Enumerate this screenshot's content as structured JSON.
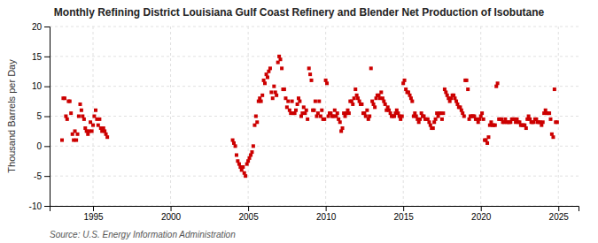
{
  "chart_data": {
    "type": "scatter",
    "title": "Monthly Refining District Louisiana Gulf Coast Refinery and Blender Net Production of Isobutane",
    "ylabel": "Thousand Barrels per Day",
    "source": "Source: U.S. Energy Information Administration",
    "color": "#cc0000",
    "marker": "square",
    "grid": true,
    "xlim": [
      1992.2,
      2026.3
    ],
    "ylim": [
      -10,
      20
    ],
    "xticks": [
      1995,
      2000,
      2005,
      2010,
      2015,
      2020,
      2025
    ],
    "yticks": [
      -10,
      -5,
      0,
      5,
      10,
      15,
      20
    ],
    "x": [
      1993.0,
      1993.08,
      1993.17,
      1993.25,
      1993.33,
      1993.42,
      1993.5,
      1993.58,
      1993.67,
      1993.75,
      1993.83,
      1993.92,
      1994.0,
      1994.08,
      1994.17,
      1994.25,
      1994.33,
      1994.42,
      1994.5,
      1994.58,
      1994.67,
      1994.75,
      1994.83,
      1994.92,
      1995.0,
      1995.08,
      1995.17,
      1995.25,
      1995.33,
      1995.42,
      1995.5,
      1995.58,
      1995.67,
      1995.75,
      1995.83,
      1995.92,
      2004.0,
      2004.08,
      2004.17,
      2004.25,
      2004.33,
      2004.42,
      2004.5,
      2004.58,
      2004.67,
      2004.75,
      2004.83,
      2004.92,
      2005.0,
      2005.08,
      2005.17,
      2005.25,
      2005.33,
      2005.42,
      2005.5,
      2005.58,
      2005.67,
      2005.75,
      2005.83,
      2005.92,
      2006.0,
      2006.08,
      2006.17,
      2006.25,
      2006.33,
      2006.42,
      2006.5,
      2006.58,
      2006.67,
      2006.75,
      2006.83,
      2006.92,
      2007.0,
      2007.08,
      2007.17,
      2007.25,
      2007.33,
      2007.42,
      2007.5,
      2007.58,
      2007.67,
      2007.75,
      2007.83,
      2007.92,
      2008.0,
      2008.08,
      2008.17,
      2008.25,
      2008.33,
      2008.42,
      2008.5,
      2008.58,
      2008.67,
      2008.75,
      2008.83,
      2008.92,
      2009.0,
      2009.08,
      2009.17,
      2009.25,
      2009.33,
      2009.42,
      2009.5,
      2009.58,
      2009.67,
      2009.75,
      2009.83,
      2009.92,
      2010.0,
      2010.08,
      2010.17,
      2010.25,
      2010.33,
      2010.42,
      2010.5,
      2010.58,
      2010.67,
      2010.75,
      2010.83,
      2010.92,
      2011.0,
      2011.08,
      2011.17,
      2011.25,
      2011.33,
      2011.42,
      2011.5,
      2011.58,
      2011.67,
      2011.75,
      2011.83,
      2011.92,
      2012.0,
      2012.08,
      2012.17,
      2012.25,
      2012.33,
      2012.42,
      2012.5,
      2012.58,
      2012.67,
      2012.75,
      2012.83,
      2012.92,
      2013.0,
      2013.08,
      2013.17,
      2013.25,
      2013.33,
      2013.42,
      2013.5,
      2013.58,
      2013.67,
      2013.75,
      2013.83,
      2013.92,
      2014.0,
      2014.08,
      2014.17,
      2014.25,
      2014.33,
      2014.42,
      2014.5,
      2014.58,
      2014.67,
      2014.75,
      2014.83,
      2014.92,
      2015.0,
      2015.08,
      2015.17,
      2015.25,
      2015.33,
      2015.42,
      2015.5,
      2015.58,
      2015.67,
      2015.75,
      2015.83,
      2015.92,
      2016.0,
      2016.08,
      2016.17,
      2016.25,
      2016.33,
      2016.42,
      2016.5,
      2016.58,
      2016.67,
      2016.75,
      2016.83,
      2016.92,
      2017.0,
      2017.08,
      2017.17,
      2017.25,
      2017.33,
      2017.42,
      2017.5,
      2017.58,
      2017.67,
      2017.75,
      2017.83,
      2017.92,
      2018.0,
      2018.08,
      2018.17,
      2018.25,
      2018.33,
      2018.42,
      2018.5,
      2018.58,
      2018.67,
      2018.75,
      2018.83,
      2018.92,
      2019.0,
      2019.08,
      2019.17,
      2019.25,
      2019.33,
      2019.42,
      2019.5,
      2019.58,
      2019.67,
      2019.75,
      2019.83,
      2019.92,
      2020.0,
      2020.08,
      2020.17,
      2020.25,
      2020.33,
      2020.42,
      2020.5,
      2020.58,
      2020.67,
      2020.75,
      2020.83,
      2020.92,
      2021.0,
      2021.08,
      2021.17,
      2021.25,
      2021.33,
      2021.42,
      2021.5,
      2021.58,
      2021.67,
      2021.75,
      2021.83,
      2021.92,
      2022.0,
      2022.08,
      2022.17,
      2022.25,
      2022.33,
      2022.42,
      2022.5,
      2022.58,
      2022.67,
      2022.75,
      2022.83,
      2022.92,
      2023.0,
      2023.08,
      2023.17,
      2023.25,
      2023.33,
      2023.42,
      2023.5,
      2023.58,
      2023.67,
      2023.75,
      2023.83,
      2023.92,
      2024.0,
      2024.08,
      2024.17,
      2024.25,
      2024.33,
      2024.42,
      2024.5,
      2024.58,
      2024.67,
      2024.75,
      2024.83,
      2024.92
    ],
    "values": [
      1.0,
      8.0,
      8.0,
      5.0,
      4.5,
      7.5,
      7.5,
      5.5,
      2.0,
      1.0,
      2.5,
      1.0,
      2.0,
      5.0,
      7.0,
      6.0,
      5.0,
      4.5,
      3.0,
      2.5,
      2.0,
      2.5,
      4.0,
      2.5,
      3.5,
      5.0,
      6.0,
      4.5,
      3.5,
      4.5,
      3.0,
      2.5,
      3.0,
      2.5,
      2.0,
      1.5,
      1.0,
      0.5,
      0.0,
      -1.5,
      -2.5,
      -3.0,
      -3.5,
      -4.0,
      -3.5,
      -4.5,
      -5.0,
      -3.0,
      -2.5,
      -2.0,
      -1.5,
      -1.0,
      0.0,
      3.5,
      5.0,
      4.0,
      7.5,
      8.0,
      7.5,
      8.5,
      11.0,
      10.5,
      12.0,
      11.5,
      12.5,
      13.0,
      9.0,
      8.0,
      10.0,
      9.0,
      8.5,
      14.0,
      15.0,
      14.5,
      13.0,
      9.5,
      9.5,
      8.0,
      6.5,
      7.5,
      6.0,
      5.5,
      7.5,
      5.5,
      5.5,
      6.0,
      7.0,
      8.0,
      7.5,
      5.0,
      5.5,
      6.5,
      5.5,
      6.0,
      4.5,
      13.0,
      12.0,
      11.0,
      6.0,
      6.0,
      7.5,
      5.0,
      5.5,
      7.5,
      5.0,
      6.0,
      4.5,
      4.5,
      11.0,
      10.5,
      5.0,
      5.5,
      5.5,
      5.0,
      5.0,
      6.0,
      5.0,
      5.5,
      4.5,
      4.0,
      2.5,
      3.0,
      5.5,
      5.0,
      5.5,
      6.0,
      5.5,
      7.5,
      7.5,
      7.0,
      8.0,
      9.5,
      8.5,
      8.0,
      7.5,
      7.0,
      7.0,
      5.5,
      5.5,
      5.0,
      6.0,
      4.5,
      5.0,
      13.0,
      7.5,
      7.0,
      6.5,
      8.0,
      8.5,
      8.5,
      8.0,
      9.0,
      8.0,
      7.5,
      7.0,
      6.0,
      6.5,
      6.0,
      5.5,
      5.0,
      5.0,
      5.0,
      5.5,
      6.0,
      5.5,
      5.0,
      4.5,
      5.0,
      10.5,
      11.0,
      9.5,
      9.0,
      9.0,
      8.5,
      8.0,
      7.5,
      5.0,
      5.5,
      5.0,
      4.5,
      4.0,
      4.5,
      5.5,
      5.0,
      5.0,
      4.5,
      4.5,
      4.5,
      4.0,
      3.5,
      3.0,
      3.0,
      4.0,
      4.5,
      5.5,
      5.0,
      5.5,
      5.5,
      4.5,
      5.5,
      9.5,
      9.0,
      8.5,
      8.0,
      7.5,
      8.0,
      8.5,
      8.5,
      8.0,
      7.5,
      7.0,
      6.5,
      6.5,
      6.0,
      5.5,
      5.0,
      11.0,
      11.0,
      9.5,
      4.5,
      5.0,
      5.0,
      5.0,
      5.0,
      4.5,
      4.5,
      4.0,
      4.5,
      5.0,
      5.5,
      4.5,
      1.0,
      1.0,
      0.5,
      1.5,
      3.5,
      4.0,
      3.5,
      3.5,
      3.5,
      10.0,
      10.5,
      4.5,
      4.5,
      4.5,
      4.0,
      4.0,
      4.5,
      4.0,
      4.0,
      4.0,
      4.0,
      4.5,
      4.5,
      4.5,
      4.0,
      4.5,
      4.0,
      4.0,
      3.5,
      3.5,
      3.5,
      3.5,
      3.0,
      4.5,
      5.0,
      4.5,
      4.0,
      4.0,
      4.0,
      4.5,
      4.5,
      4.0,
      4.0,
      4.0,
      3.5,
      4.0,
      5.5,
      6.0,
      5.5,
      5.5,
      5.5,
      4.5,
      2.0,
      1.5,
      9.5,
      4.0,
      4.0
    ]
  }
}
